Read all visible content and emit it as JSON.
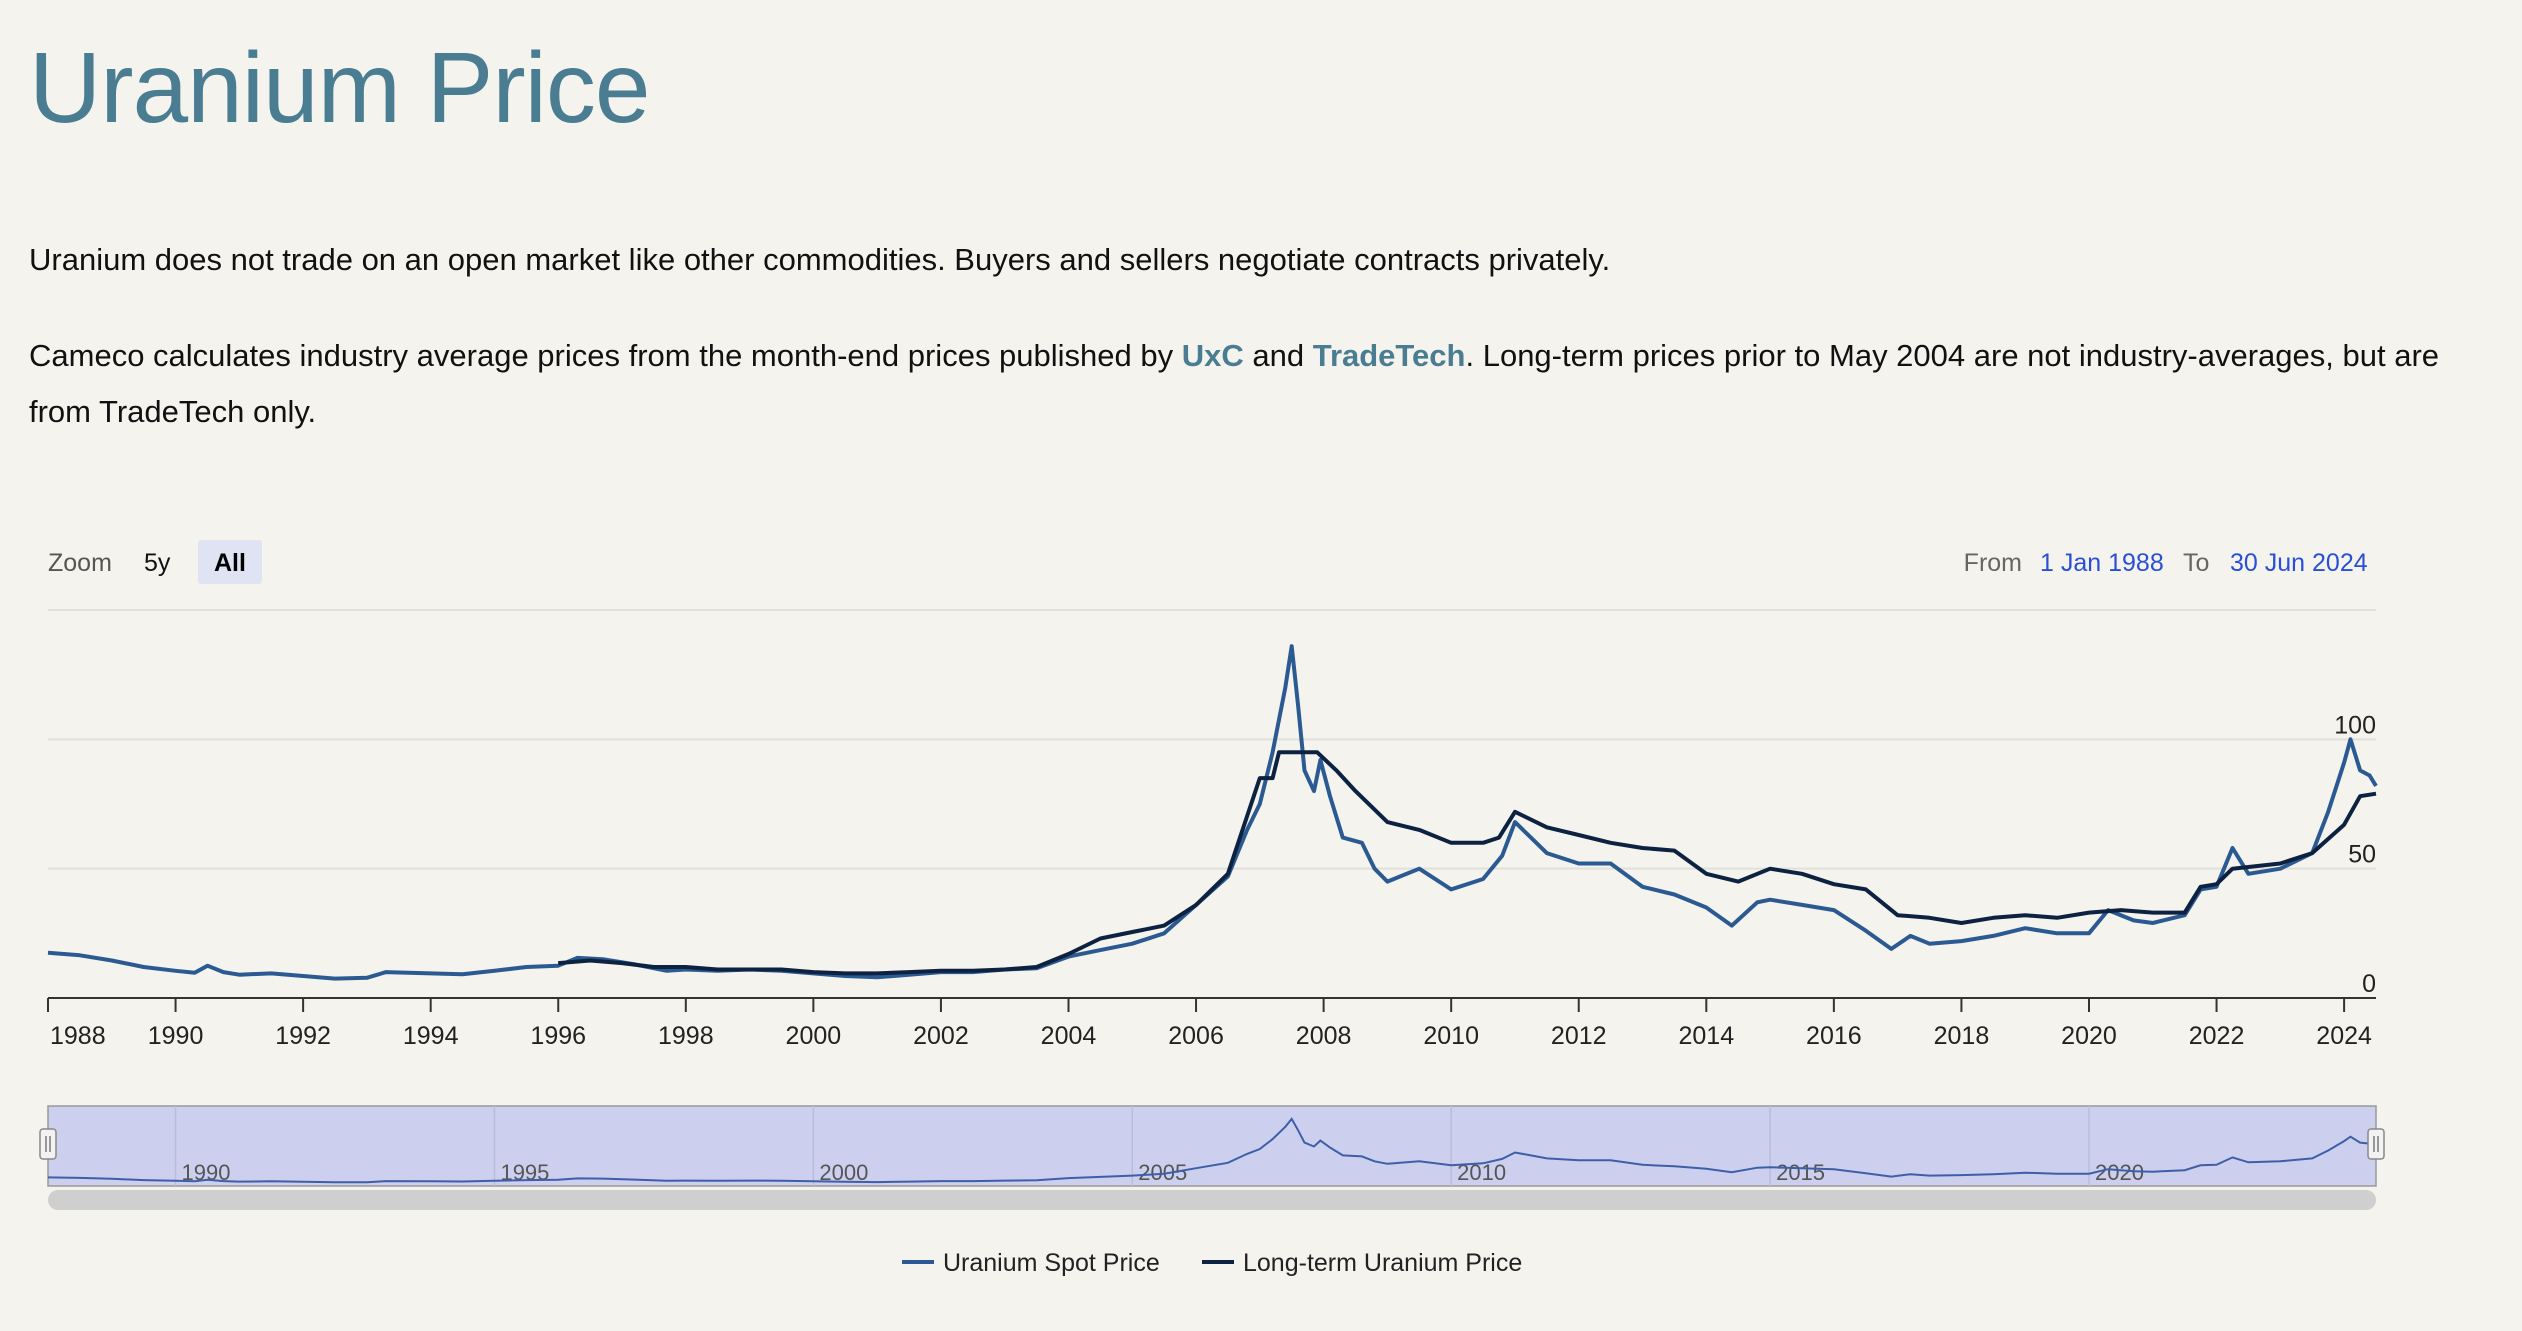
{
  "header": {
    "title": "Uranium Price"
  },
  "intro": {
    "p1": "Uranium does not trade on an open market like other commodities. Buyers and sellers negotiate contracts privately.",
    "p2_before": "Cameco calculates industry average prices from the month-end prices published by ",
    "p2_link1": "UxC",
    "p2_mid": " and ",
    "p2_link2": "TradeTech",
    "p2_after": ". Long-term prices prior to May 2004 are not industry-averages, but are from TradeTech only."
  },
  "controls": {
    "zoom_label": "Zoom",
    "zoom_buttons": [
      "5y",
      "All"
    ],
    "zoom_selected": "All",
    "from_label": "From",
    "from_value": "1 Jan 1988",
    "to_label": "To",
    "to_value": "30 Jun 2024"
  },
  "colors": {
    "spot": "#2b5a92",
    "longterm": "#0d2240",
    "title": "#4a7d92",
    "link": "#2a4fd6",
    "navigator_fill": "#ccd0ee"
  },
  "chart_data": {
    "type": "line",
    "title": "",
    "xlabel": "",
    "ylabel": "",
    "xlim": [
      1988.0,
      2024.5
    ],
    "ylim": [
      0,
      150
    ],
    "yticks": [
      0,
      50,
      100
    ],
    "xticks": [
      1988,
      1990,
      1992,
      1994,
      1996,
      1998,
      2000,
      2002,
      2004,
      2006,
      2008,
      2010,
      2012,
      2014,
      2016,
      2018,
      2020,
      2022,
      2024
    ],
    "grid": true,
    "legend_position": "bottom-center",
    "series": [
      {
        "name": "Uranium Spot Price",
        "color": "#2b5a92",
        "points": [
          [
            1988.0,
            17.5
          ],
          [
            1988.5,
            16.5
          ],
          [
            1989.0,
            14.5
          ],
          [
            1989.5,
            12.0
          ],
          [
            1990.0,
            10.5
          ],
          [
            1990.3,
            9.8
          ],
          [
            1990.5,
            12.5
          ],
          [
            1990.75,
            10.0
          ],
          [
            1991.0,
            9.0
          ],
          [
            1991.5,
            9.5
          ],
          [
            1992.0,
            8.5
          ],
          [
            1992.5,
            7.5
          ],
          [
            1993.0,
            7.8
          ],
          [
            1993.3,
            10.0
          ],
          [
            1994.0,
            9.5
          ],
          [
            1994.5,
            9.2
          ],
          [
            1995.0,
            10.5
          ],
          [
            1995.5,
            12.0
          ],
          [
            1996.0,
            12.5
          ],
          [
            1996.3,
            15.5
          ],
          [
            1996.7,
            15.0
          ],
          [
            1997.2,
            13.0
          ],
          [
            1997.7,
            10.5
          ],
          [
            1998.0,
            11.0
          ],
          [
            1998.5,
            10.5
          ],
          [
            1999.0,
            11.0
          ],
          [
            1999.5,
            10.5
          ],
          [
            2000.0,
            9.5
          ],
          [
            2000.5,
            8.5
          ],
          [
            2001.0,
            8.0
          ],
          [
            2001.5,
            9.0
          ],
          [
            2002.0,
            10.0
          ],
          [
            2002.5,
            10.0
          ],
          [
            2003.0,
            11.0
          ],
          [
            2003.5,
            11.5
          ],
          [
            2004.0,
            16.0
          ],
          [
            2004.5,
            18.5
          ],
          [
            2005.0,
            21.0
          ],
          [
            2005.5,
            25.0
          ],
          [
            2006.0,
            36.0
          ],
          [
            2006.5,
            47.0
          ],
          [
            2006.8,
            65.0
          ],
          [
            2007.0,
            75.0
          ],
          [
            2007.2,
            95.0
          ],
          [
            2007.4,
            120.0
          ],
          [
            2007.5,
            136.0
          ],
          [
            2007.6,
            113.0
          ],
          [
            2007.7,
            88.0
          ],
          [
            2007.85,
            80.0
          ],
          [
            2007.95,
            92.0
          ],
          [
            2008.1,
            78.0
          ],
          [
            2008.3,
            62.0
          ],
          [
            2008.6,
            60.0
          ],
          [
            2008.8,
            50.0
          ],
          [
            2009.0,
            45.0
          ],
          [
            2009.5,
            50.0
          ],
          [
            2010.0,
            42.0
          ],
          [
            2010.5,
            46.0
          ],
          [
            2010.8,
            55.0
          ],
          [
            2011.0,
            68.0
          ],
          [
            2011.25,
            62.0
          ],
          [
            2011.5,
            56.0
          ],
          [
            2012.0,
            52.0
          ],
          [
            2012.5,
            52.0
          ],
          [
            2013.0,
            43.0
          ],
          [
            2013.5,
            40.0
          ],
          [
            2014.0,
            35.0
          ],
          [
            2014.4,
            28.0
          ],
          [
            2014.8,
            37.0
          ],
          [
            2015.0,
            38.0
          ],
          [
            2015.5,
            36.0
          ],
          [
            2016.0,
            34.0
          ],
          [
            2016.5,
            26.0
          ],
          [
            2016.9,
            19.0
          ],
          [
            2017.2,
            24.0
          ],
          [
            2017.5,
            21.0
          ],
          [
            2018.0,
            22.0
          ],
          [
            2018.5,
            24.0
          ],
          [
            2019.0,
            27.0
          ],
          [
            2019.5,
            25.0
          ],
          [
            2020.0,
            25.0
          ],
          [
            2020.3,
            34.0
          ],
          [
            2020.7,
            30.0
          ],
          [
            2021.0,
            29.0
          ],
          [
            2021.5,
            32.0
          ],
          [
            2021.75,
            42.0
          ],
          [
            2022.0,
            43.0
          ],
          [
            2022.25,
            58.0
          ],
          [
            2022.5,
            48.0
          ],
          [
            2023.0,
            50.0
          ],
          [
            2023.5,
            56.0
          ],
          [
            2023.75,
            72.0
          ],
          [
            2024.0,
            91.0
          ],
          [
            2024.1,
            100.0
          ],
          [
            2024.25,
            88.0
          ],
          [
            2024.4,
            86.0
          ],
          [
            2024.5,
            82.0
          ]
        ]
      },
      {
        "name": "Long-term Uranium Price",
        "color": "#0d2240",
        "points": [
          [
            1996.0,
            13.5
          ],
          [
            1996.5,
            14.5
          ],
          [
            1997.0,
            13.5
          ],
          [
            1997.5,
            12.0
          ],
          [
            1998.0,
            12.0
          ],
          [
            1998.5,
            11.0
          ],
          [
            1999.0,
            11.0
          ],
          [
            1999.5,
            11.0
          ],
          [
            2000.0,
            10.0
          ],
          [
            2000.5,
            9.5
          ],
          [
            2001.0,
            9.5
          ],
          [
            2001.5,
            10.0
          ],
          [
            2002.0,
            10.5
          ],
          [
            2002.5,
            10.5
          ],
          [
            2003.0,
            11.0
          ],
          [
            2003.5,
            12.0
          ],
          [
            2004.0,
            17.0
          ],
          [
            2004.5,
            23.0
          ],
          [
            2005.0,
            25.5
          ],
          [
            2005.5,
            28.0
          ],
          [
            2006.0,
            36.0
          ],
          [
            2006.5,
            48.0
          ],
          [
            2007.0,
            85.0
          ],
          [
            2007.2,
            85.0
          ],
          [
            2007.3,
            95.0
          ],
          [
            2007.9,
            95.0
          ],
          [
            2008.2,
            88.0
          ],
          [
            2008.5,
            80.0
          ],
          [
            2009.0,
            68.0
          ],
          [
            2009.5,
            65.0
          ],
          [
            2010.0,
            60.0
          ],
          [
            2010.5,
            60.0
          ],
          [
            2010.75,
            62.0
          ],
          [
            2011.0,
            72.0
          ],
          [
            2011.5,
            66.0
          ],
          [
            2012.0,
            63.0
          ],
          [
            2012.5,
            60.0
          ],
          [
            2013.0,
            58.0
          ],
          [
            2013.5,
            57.0
          ],
          [
            2014.0,
            48.0
          ],
          [
            2014.5,
            45.0
          ],
          [
            2015.0,
            50.0
          ],
          [
            2015.5,
            48.0
          ],
          [
            2016.0,
            44.0
          ],
          [
            2016.5,
            42.0
          ],
          [
            2016.9,
            34.0
          ],
          [
            2017.0,
            32.0
          ],
          [
            2017.5,
            31.0
          ],
          [
            2018.0,
            29.0
          ],
          [
            2018.5,
            31.0
          ],
          [
            2019.0,
            32.0
          ],
          [
            2019.5,
            31.0
          ],
          [
            2020.0,
            33.0
          ],
          [
            2020.5,
            34.0
          ],
          [
            2021.0,
            33.0
          ],
          [
            2021.5,
            33.0
          ],
          [
            2021.75,
            43.0
          ],
          [
            2022.0,
            44.0
          ],
          [
            2022.25,
            50.0
          ],
          [
            2023.0,
            52.0
          ],
          [
            2023.5,
            56.0
          ],
          [
            2024.0,
            67.0
          ],
          [
            2024.25,
            78.0
          ],
          [
            2024.5,
            79.0
          ]
        ]
      }
    ],
    "navigator": {
      "xticks": [
        1990,
        1995,
        2000,
        2005,
        2010,
        2015,
        2020
      ]
    }
  }
}
